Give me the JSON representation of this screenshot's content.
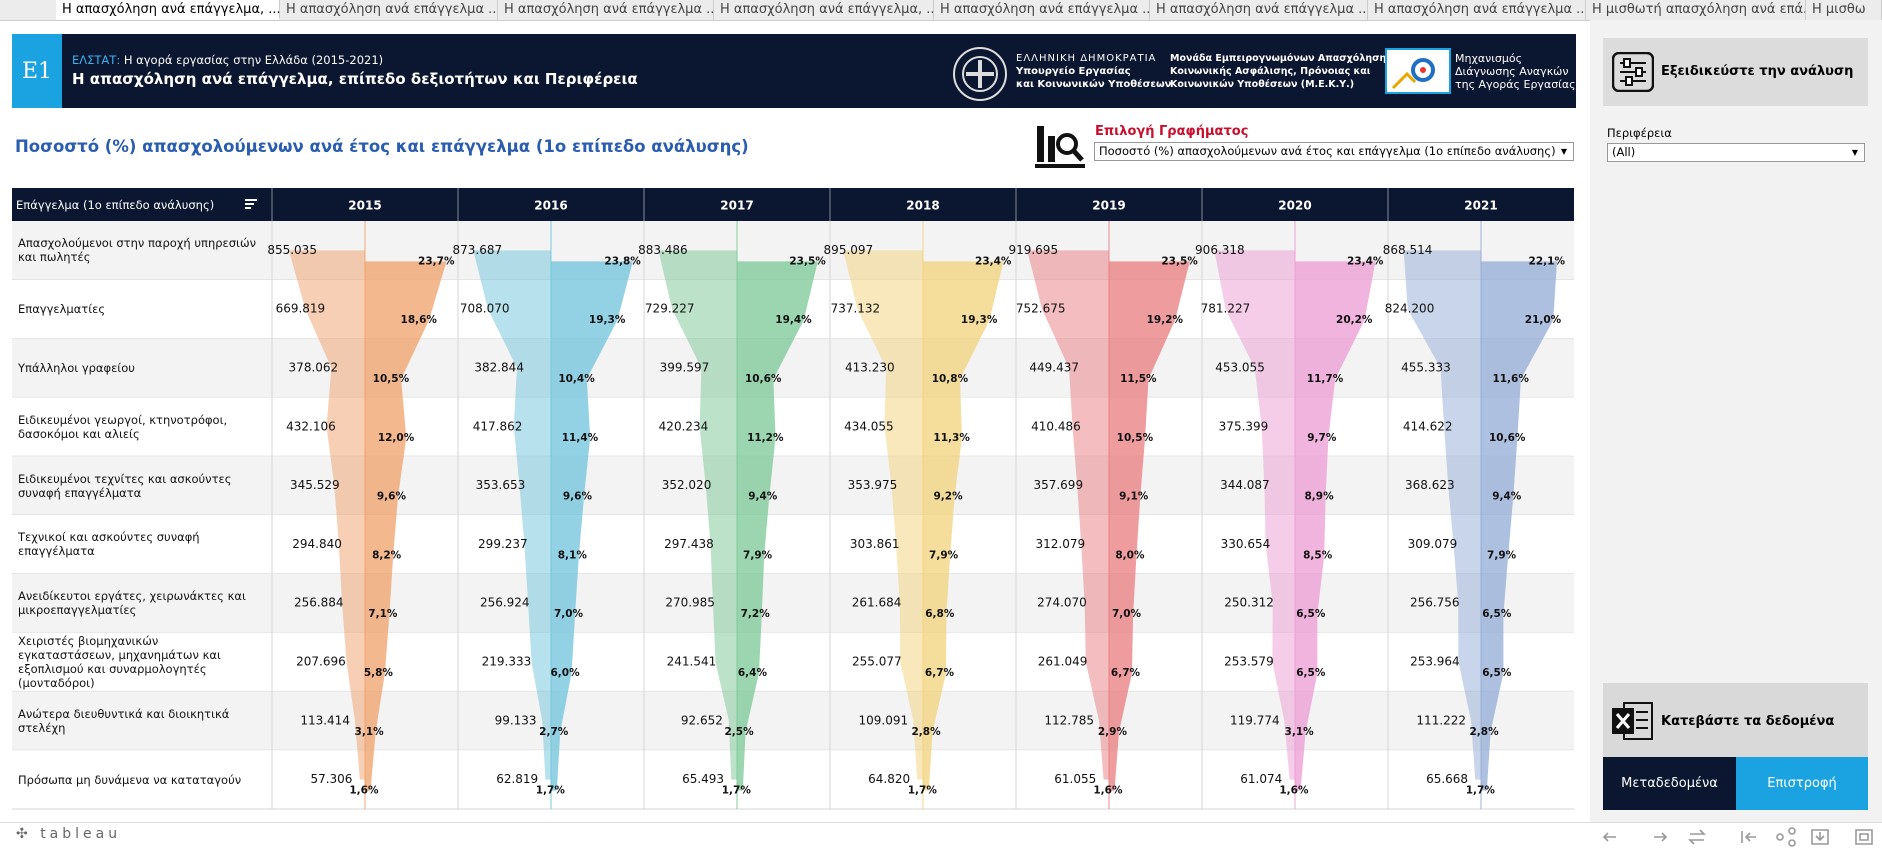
{
  "tabs": [
    "Η απασχόληση ανά επάγγελμα, ...",
    "Η απασχόληση ανά επάγγελμα ...",
    "Η απασχόληση ανά επάγγελμα ...",
    "Η απασχόληση ανά επάγγελμα, ...",
    "Η απασχόληση ανά επάγγελμα ...",
    "Η απασχόληση ανά επάγγελμα ...",
    "Η απασχόληση ανά επάγγελμα ...",
    "Η μισθωτή απασχόληση ανά επά...",
    "Η μισθω"
  ],
  "header": {
    "badge": "E1",
    "source_label": "ΕΛΣΤΑΤ:",
    "source": "Η αγορά εργασίας στην Ελλάδα (2015-2021)",
    "title": "Η απασχόληση ανά επάγγελμα, επίπεδο δεξιοτήτων και Περιφέρεια",
    "ministry": [
      "ΕΛΛΗΝΙΚΗ ΔΗΜΟΚΡΑΤΙΑ",
      "Υπουργείο Εργασίας",
      "και Κοινωνικών Υποθέσεων"
    ],
    "unit": [
      "Μονάδα Εμπειρογνωμόνων Απασχόλησης,",
      "Κοινωνικής Ασφάλισης, Πρόνοιας και",
      "Κοινωνικών Υποθέσεων (Μ.Ε.Κ.Υ.)"
    ],
    "mechanism": [
      "Μηχανισμός",
      "Διάγνωσης Αναγκών",
      "της Αγοράς Εργασίας"
    ]
  },
  "chart_selector": {
    "label": "Επιλογή Γραφήματος",
    "value": "Ποσοστό (%) απασχολούμενων ανά έτος και επάγγελμα (1ο επίπεδο ανάλυσης)"
  },
  "sidebar": {
    "refine": "Εξειδικεύστε την ανάλυση",
    "filter_label": "Περιφέρεια",
    "filter_value": "(All)",
    "download": "Κατεβάστε τα δεδομένα",
    "metadata": "Μεταδεδομένα",
    "back": "Επιστροφή"
  },
  "footer": {
    "brand": "tableau"
  },
  "chart_data": {
    "type": "area",
    "title": "Ποσοστό (%) απασχολούμενων ανά έτος και επάγγελμα (1ο επίπεδο ανάλυσης)",
    "row_header": "Επάγγελμα (1ο επίπεδο ανάλυσης)",
    "categories": [
      "Απασχολούμενοι στην παροχή υπηρεσιών και πωλητές",
      "Επαγγελματίες",
      "Υπάλληλοι γραφείου",
      "Ειδικευμένοι γεωργοί, κτηνοτρόφοι, δασοκόμοι και αλιείς",
      "Ειδικευμένοι τεχνίτες και ασκούντες συναφή επαγγέλματα",
      "Τεχνικοί και ασκούντες συναφή επαγγέλματα",
      "Ανειδίκευτοι εργάτες, χειρωνάκτες και μικροεπαγγελματίες",
      "Χειριστές βιομηχανικών εγκαταστάσεων, μηχανημάτων και εξοπλισμού και συναρμολογητές (μονταδόροι)",
      "Ανώτερα διευθυντικά και διοικητικά στελέχη",
      "Πρόσωπα μη δυνάμενα να καταταγούν"
    ],
    "series": [
      {
        "name": "2015",
        "color": "#f0a06a",
        "values": [
          855035,
          669819,
          378062,
          432106,
          345529,
          294840,
          256884,
          207696,
          113414,
          57306
        ],
        "value_labels": [
          "855.035",
          "669.819",
          "378.062",
          "432.106",
          "345.529",
          "294.840",
          "256.884",
          "207.696",
          "113.414",
          "57.306"
        ],
        "shares": [
          23.7,
          18.6,
          10.5,
          12.0,
          9.6,
          8.2,
          7.1,
          5.8,
          3.1,
          1.6
        ],
        "share_labels": [
          "23,7%",
          "18,6%",
          "10,5%",
          "12,0%",
          "9,6%",
          "8,2%",
          "7,1%",
          "5,8%",
          "3,1%",
          "1,6%"
        ]
      },
      {
        "name": "2016",
        "color": "#6fc3dc",
        "values": [
          873687,
          708070,
          382844,
          417862,
          353653,
          299237,
          256924,
          219333,
          99133,
          62819
        ],
        "value_labels": [
          "873.687",
          "708.070",
          "382.844",
          "417.862",
          "353.653",
          "299.237",
          "256.924",
          "219.333",
          "99.133",
          "62.819"
        ],
        "shares": [
          23.8,
          19.3,
          10.4,
          11.4,
          9.6,
          8.1,
          7.0,
          6.0,
          2.7,
          1.7
        ],
        "share_labels": [
          "23,8%",
          "19,3%",
          "10,4%",
          "11,4%",
          "9,6%",
          "8,1%",
          "7,0%",
          "6,0%",
          "2,7%",
          "1,7%"
        ]
      },
      {
        "name": "2017",
        "color": "#7ac895",
        "values": [
          883486,
          729227,
          399597,
          420234,
          352020,
          297438,
          270985,
          241541,
          92652,
          65493
        ],
        "value_labels": [
          "883.486",
          "729.227",
          "399.597",
          "420.234",
          "352.020",
          "297.438",
          "270.985",
          "241.541",
          "92.652",
          "65.493"
        ],
        "shares": [
          23.5,
          19.4,
          10.6,
          11.2,
          9.4,
          7.9,
          7.2,
          6.4,
          2.5,
          1.7
        ],
        "share_labels": [
          "23,5%",
          "19,4%",
          "10,6%",
          "11,2%",
          "9,4%",
          "7,9%",
          "7,2%",
          "6,4%",
          "2,5%",
          "1,7%"
        ]
      },
      {
        "name": "2018",
        "color": "#f2d27a",
        "values": [
          895097,
          737132,
          413230,
          434055,
          353975,
          303861,
          261684,
          255077,
          109091,
          64820
        ],
        "value_labels": [
          "895.097",
          "737.132",
          "413.230",
          "434.055",
          "353.975",
          "303.861",
          "261.684",
          "255.077",
          "109.091",
          "64.820"
        ],
        "shares": [
          23.4,
          19.3,
          10.8,
          11.3,
          9.2,
          7.9,
          6.8,
          6.7,
          2.8,
          1.7
        ],
        "share_labels": [
          "23,4%",
          "19,3%",
          "10,8%",
          "11,3%",
          "9,2%",
          "7,9%",
          "6,8%",
          "6,7%",
          "2,8%",
          "1,7%"
        ]
      },
      {
        "name": "2019",
        "color": "#e97b7f",
        "values": [
          919695,
          752675,
          449437,
          410486,
          357699,
          312079,
          274070,
          261049,
          112785,
          61055
        ],
        "value_labels": [
          "919.695",
          "752.675",
          "449.437",
          "410.486",
          "357.699",
          "312.079",
          "274.070",
          "261.049",
          "112.785",
          "61.055"
        ],
        "shares": [
          23.5,
          19.2,
          11.5,
          10.5,
          9.1,
          8.0,
          7.0,
          6.7,
          2.9,
          1.6
        ],
        "share_labels": [
          "23,5%",
          "19,2%",
          "11,5%",
          "10,5%",
          "9,1%",
          "8,0%",
          "7,0%",
          "6,7%",
          "2,9%",
          "1,6%"
        ]
      },
      {
        "name": "2020",
        "color": "#ec9bd3",
        "values": [
          906318,
          781227,
          453055,
          375399,
          344087,
          330654,
          250312,
          253579,
          119774,
          61074
        ],
        "value_labels": [
          "906.318",
          "781.227",
          "453.055",
          "375.399",
          "344.087",
          "330.654",
          "250.312",
          "253.579",
          "119.774",
          "61.074"
        ],
        "shares": [
          23.4,
          20.2,
          11.7,
          9.7,
          8.9,
          8.5,
          6.5,
          6.5,
          3.1,
          1.6
        ],
        "share_labels": [
          "23,4%",
          "20,2%",
          "11,7%",
          "9,7%",
          "8,9%",
          "8,5%",
          "6,5%",
          "6,5%",
          "3,1%",
          "1,6%"
        ]
      },
      {
        "name": "2021",
        "color": "#93abd6",
        "values": [
          868514,
          824200,
          455333,
          414622,
          368623,
          309079,
          256756,
          253964,
          111222,
          65668
        ],
        "value_labels": [
          "868.514",
          "824.200",
          "455.333",
          "414.622",
          "368.623",
          "309.079",
          "256.756",
          "253.964",
          "111.222",
          "65.668"
        ],
        "shares": [
          22.1,
          21.0,
          11.6,
          10.6,
          9.4,
          7.9,
          6.5,
          6.5,
          2.8,
          1.7
        ],
        "share_labels": [
          "22,1%",
          "21,0%",
          "11,6%",
          "10,6%",
          "9,4%",
          "7,9%",
          "6,5%",
          "6,5%",
          "2,8%",
          "1,7%"
        ]
      }
    ]
  }
}
